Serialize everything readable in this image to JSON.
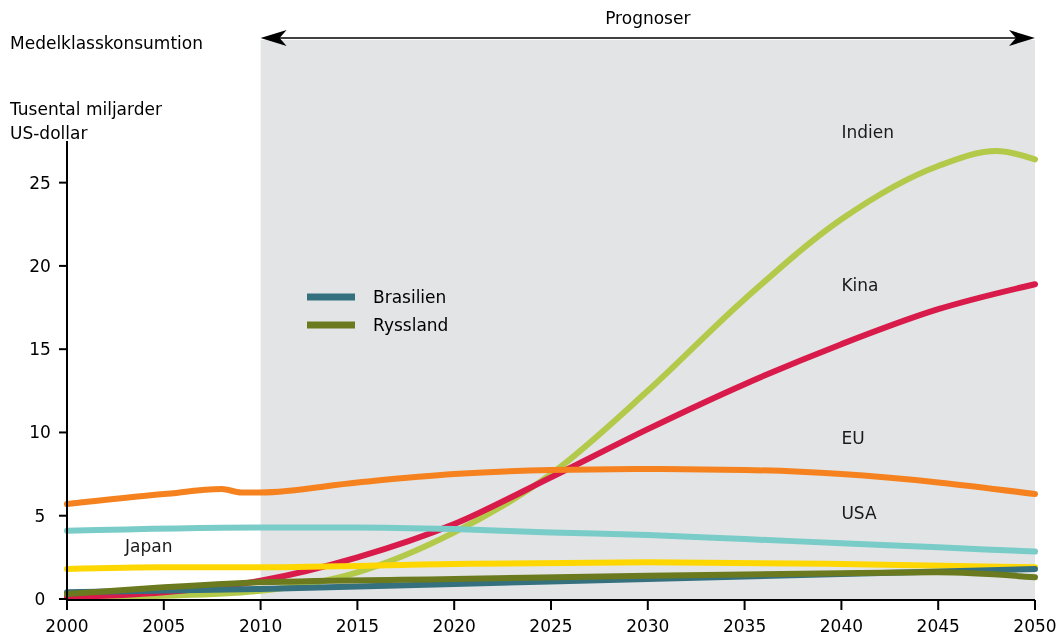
{
  "chart_data": {
    "type": "line",
    "title": "Medelklasskonsumtion",
    "ylabel": "Tusental miljarder\nUS-dollar",
    "xlim": [
      2000,
      2050
    ],
    "xticks": [
      2000,
      2005,
      2010,
      2015,
      2020,
      2025,
      2030,
      2035,
      2040,
      2045,
      2050
    ],
    "ylim": [
      0,
      27.5
    ],
    "yticks": [
      0,
      5,
      10,
      15,
      20,
      25
    ],
    "bands": [
      {
        "axis": "x",
        "from": 2010,
        "to": 2050,
        "label": "Prognoser",
        "color": "#e3e4e6"
      }
    ],
    "legend": "top left",
    "grid": false,
    "line_style": "solid",
    "series": [
      {
        "name": "Indien",
        "color": "#b2c94a",
        "x": [
          2000,
          2005,
          2010,
          2015,
          2020,
          2025,
          2030,
          2035,
          2040,
          2045,
          2048,
          2050
        ],
        "values": [
          0.1,
          0.2,
          0.5,
          1.6,
          4.0,
          7.5,
          12.5,
          18.0,
          22.8,
          26.0,
          26.9,
          26.4
        ]
      },
      {
        "name": "Kina",
        "color": "#d81b4a",
        "x": [
          2000,
          2005,
          2010,
          2015,
          2020,
          2025,
          2030,
          2035,
          2040,
          2045,
          2050
        ],
        "values": [
          0.1,
          0.4,
          1.1,
          2.5,
          4.5,
          7.3,
          10.2,
          12.9,
          15.3,
          17.4,
          18.9
        ]
      },
      {
        "name": "EU",
        "color": "#f5821f",
        "x": [
          2000,
          2005,
          2008,
          2009,
          2010,
          2015,
          2020,
          2025,
          2030,
          2035,
          2040,
          2045,
          2050
        ],
        "values": [
          5.7,
          6.3,
          6.6,
          6.4,
          6.4,
          7.0,
          7.5,
          7.75,
          7.8,
          7.75,
          7.5,
          7.0,
          6.3
        ]
      },
      {
        "name": "USA",
        "color": "#7accc8",
        "x": [
          2000,
          2010,
          2015,
          2020,
          2025,
          2030,
          2035,
          2040,
          2045,
          2050
        ],
        "values": [
          4.1,
          4.3,
          4.3,
          4.2,
          4.0,
          3.85,
          3.6,
          3.35,
          3.1,
          2.85
        ]
      },
      {
        "name": "Japan",
        "color": "#ffd700",
        "x": [
          2000,
          2005,
          2010,
          2020,
          2030,
          2040,
          2050
        ],
        "values": [
          1.8,
          1.9,
          1.9,
          2.1,
          2.2,
          2.1,
          1.9
        ]
      },
      {
        "name": "Brasilien",
        "color": "#35707f",
        "x": [
          2000,
          2010,
          2020,
          2030,
          2040,
          2050
        ],
        "values": [
          0.4,
          0.6,
          0.9,
          1.2,
          1.5,
          1.8
        ]
      },
      {
        "name": "Ryssland",
        "color": "#6b7a1f",
        "x": [
          2000,
          2005,
          2010,
          2020,
          2030,
          2040,
          2045,
          2050
        ],
        "values": [
          0.3,
          0.7,
          1.0,
          1.2,
          1.4,
          1.55,
          1.6,
          1.3
        ]
      }
    ]
  }
}
